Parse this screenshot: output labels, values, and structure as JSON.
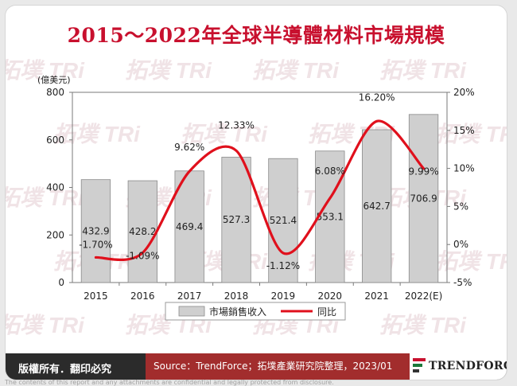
{
  "colors": {
    "title": "#c8102e",
    "bar": "#cfcfcf",
    "bar_edge": "#8a8a8a",
    "line": "#e0101c",
    "footer": "#2b2b2b",
    "source_bg": "#a22d2d"
  },
  "chart_data": {
    "type": "bar",
    "title": "2015～2022年全球半導體材料市場規模",
    "ylabel_left": "(億美元)",
    "categories": [
      "2015",
      "2016",
      "2017",
      "2018",
      "2019",
      "2020",
      "2021",
      "2022(E)"
    ],
    "series": [
      {
        "name": "市場銷售收入",
        "type": "bar",
        "axis": "left",
        "values": [
          432.9,
          428.2,
          469.4,
          527.3,
          521.4,
          553.1,
          642.7,
          706.9
        ],
        "labels": [
          "432.9",
          "428.2",
          "469.4",
          "527.3",
          "521.4",
          "553.1",
          "642.7",
          "706.9"
        ]
      },
      {
        "name": "同比",
        "type": "line",
        "axis": "right",
        "values": [
          -1.7,
          -1.09,
          9.62,
          12.33,
          -1.12,
          6.08,
          16.2,
          9.99
        ],
        "labels": [
          "-1.70%",
          "-1.09%",
          "9.62%",
          "12.33%",
          "-1.12%",
          "6.08%",
          "16.20%",
          "9.99%"
        ]
      }
    ],
    "ylim_left": [
      0,
      800
    ],
    "yticks_left": [
      "0",
      "200",
      "400",
      "600",
      "800"
    ],
    "ylim_right": [
      -5,
      20
    ],
    "yticks_right": [
      "-5%",
      "0%",
      "5%",
      "10%",
      "15%",
      "20%"
    ],
    "legend_position": "bottom",
    "grid": false
  },
  "footer": {
    "copyright": "版權所有．翻印必究",
    "source": "Source：TrendForce；拓墣產業研究院整理，2023/01",
    "logo": "TRENDFORCE"
  },
  "watermark": "拓墣 TRi",
  "disclaimer": "The contents of this report and any attachments are confidential and legally protected from disclosure."
}
